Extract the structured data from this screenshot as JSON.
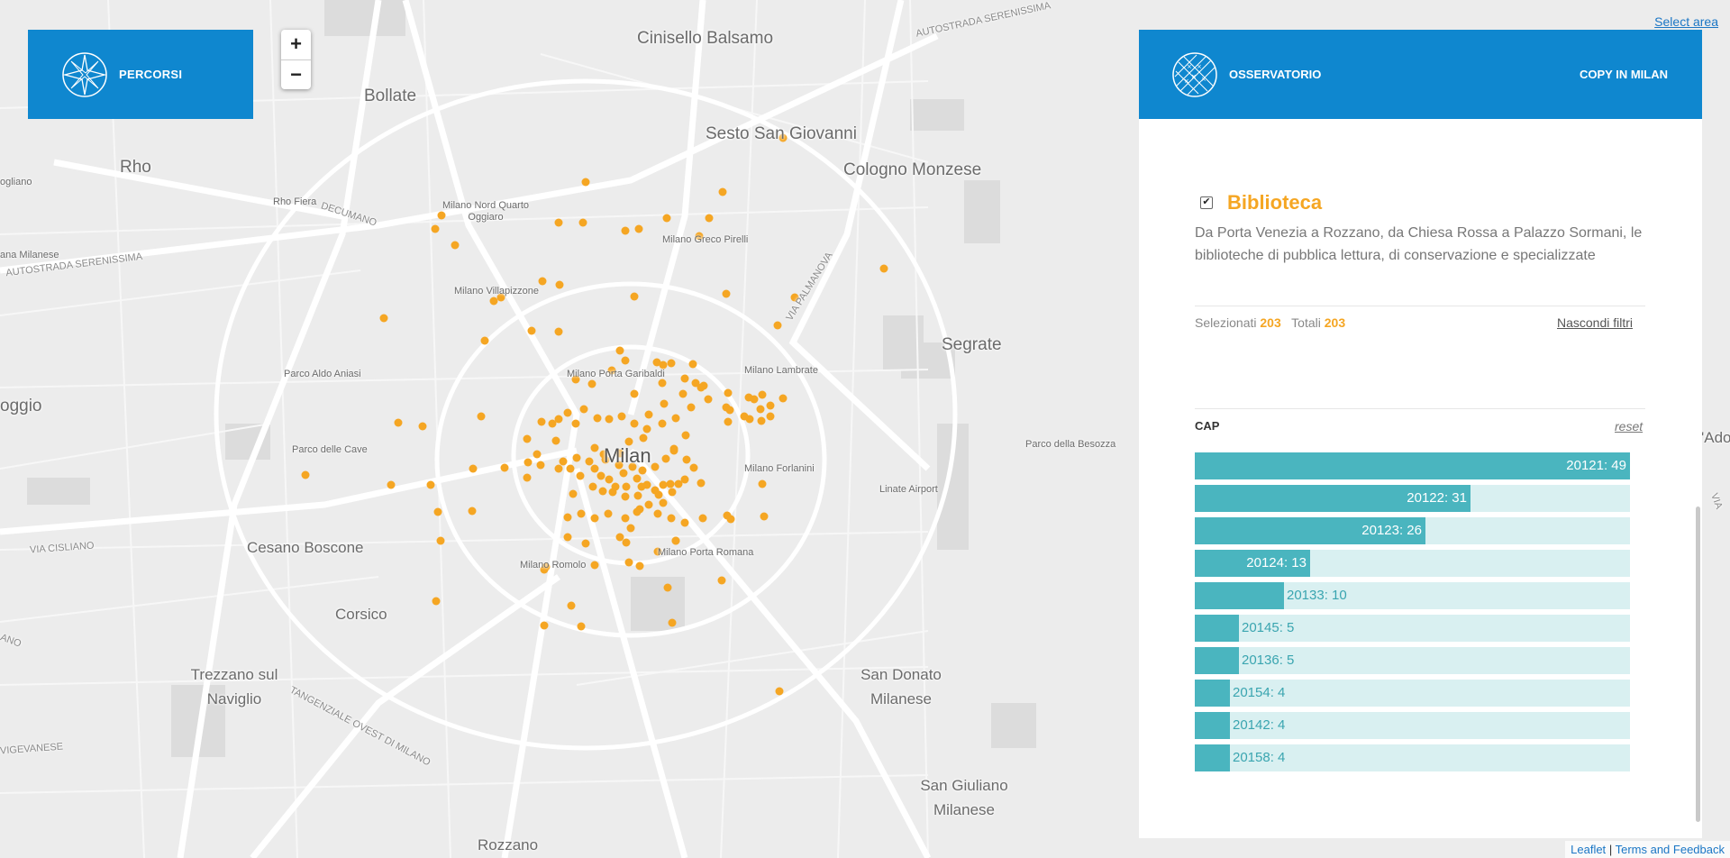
{
  "left_panel": {
    "title": "PERCORSI",
    "logo_icon": "compass-star-icon"
  },
  "zoom": {
    "in_label": "+",
    "out_label": "−"
  },
  "select_area": "Select area",
  "header": {
    "title": "OSSERVATORIO",
    "logo_icon": "globe-grid-icon",
    "right_label": "COPY IN MILAN"
  },
  "layer": {
    "checked": true,
    "checkbox_glyph": "✔",
    "title": "Biblioteca",
    "description": "Da Porta Venezia a Rozzano, da Chiesa Rossa a Palazzo Sormani, le biblioteche di pubblica lettura, di conservazione e specializzate",
    "selected_label": "Selezionati",
    "selected_value": "203",
    "total_label": "Totali",
    "total_value": "203",
    "hide_filters": "Nascondi filtri"
  },
  "cap_filter": {
    "title": "CAP",
    "reset": "reset",
    "max": 49,
    "bars": [
      {
        "label": "20121: 49",
        "value": 49
      },
      {
        "label": "20122: 31",
        "value": 31
      },
      {
        "label": "20123: 26",
        "value": 26
      },
      {
        "label": "20124: 13",
        "value": 13
      },
      {
        "label": "20133: 10",
        "value": 10
      },
      {
        "label": "20145: 5",
        "value": 5
      },
      {
        "label": "20136: 5",
        "value": 5
      },
      {
        "label": "20154: 4",
        "value": 4
      },
      {
        "label": "20142: 4",
        "value": 4
      },
      {
        "label": "20158: 4",
        "value": 4
      }
    ]
  },
  "attribution": {
    "leaflet": "Leaflet",
    "separator": "|",
    "terms": "Terms and Feedback"
  },
  "map": {
    "labels": {
      "cinisello": "Cinisello Balsamo",
      "bollate": "Bollate",
      "sesto": "Sesto San Giovanni",
      "cologno": "Cologno Monzese",
      "rho": "Rho",
      "rho_fiera": "Rho Fiera",
      "quarto_oggiaro": "Milano Nord Quarto Oggiaro",
      "greco": "Milano Greco Pirelli",
      "villapizzone": "Milano Villapizzone",
      "segrate": "Segrate",
      "aniasi": "Parco Aldo Aniasi",
      "garibaldi": "Milano Porta Garibaldi",
      "lambrate": "Milano Lambrate",
      "parco_cave": "Parco delle Cave",
      "milan": "Milan",
      "forlanini": "Milano Forlanini",
      "besozza": "Parco della Besozza",
      "linate": "Linate Airport",
      "cesano": "Cesano Boscone",
      "romolo": "Milano Romolo",
      "porta_romana": "Milano Porta Romana",
      "corsico": "Corsico",
      "trezzano": "Trezzano sul Naviglio",
      "san_donato": "San Donato Milanese",
      "san_giuliano": "San Giuliano Milanese",
      "rozzano": "Rozzano",
      "ogliano": "ogliano",
      "ana_milanese": "ana Milanese",
      "oggio": "oggio",
      "ado": "'Ado",
      "autostrada_n": "AUTOSTRADA SERENISSIMA",
      "autostrada_w": "AUTOSTRADA SERENISSIMA",
      "decumano": "DECUMANO",
      "via_palmanova": "VIA PALMANOVA",
      "via_cisliano": "VIA CISLIANO",
      "tangenziale": "TANGENZIALE OVEST DI MILANO",
      "vigevanese": "VIGEVANESE",
      "ano": "ANO",
      "via_e": "VIA"
    }
  }
}
